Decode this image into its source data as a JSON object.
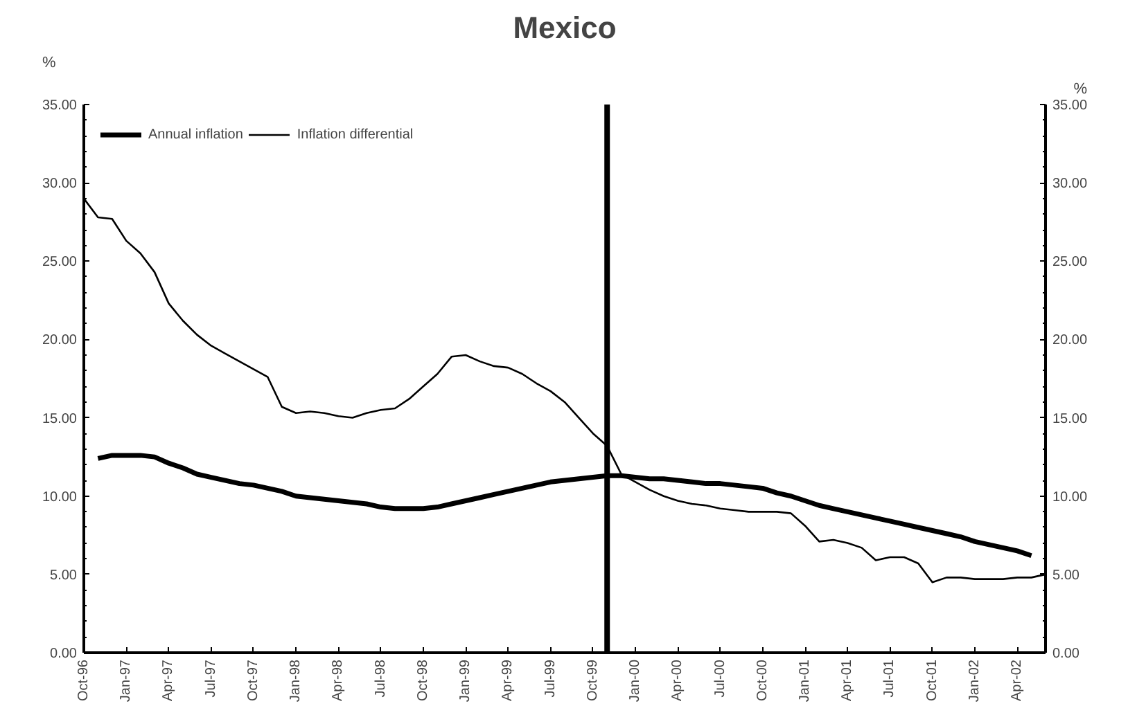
{
  "chart_data": {
    "type": "line",
    "title": "Mexico",
    "ylabel": "%",
    "y2label": "%",
    "x": [
      "1996-10",
      "1996-11",
      "1996-12",
      "1997-01",
      "1997-02",
      "1997-03",
      "1997-04",
      "1997-05",
      "1997-06",
      "1997-07",
      "1997-08",
      "1997-09",
      "1997-10",
      "1997-11",
      "1997-12",
      "1998-01",
      "1998-02",
      "1998-03",
      "1998-04",
      "1998-05",
      "1998-06",
      "1998-07",
      "1998-08",
      "1998-09",
      "1998-10",
      "1998-11",
      "1998-12",
      "1999-01",
      "1999-02",
      "1999-03",
      "1999-04",
      "1999-05",
      "1999-06",
      "1999-07",
      "1999-08",
      "1999-09",
      "1999-10",
      "1999-11",
      "1999-12",
      "2000-01",
      "2000-02",
      "2000-03",
      "2000-04",
      "2000-05",
      "2000-06",
      "2000-07",
      "2000-08",
      "2000-09",
      "2000-10",
      "2000-11",
      "2000-12",
      "2001-01",
      "2001-02",
      "2001-03",
      "2001-04",
      "2001-05",
      "2001-06",
      "2001-07",
      "2001-08",
      "2001-09",
      "2001-10",
      "2001-11",
      "2001-12",
      "2002-01",
      "2002-02",
      "2002-03",
      "2002-04",
      "2002-05",
      "2002-06"
    ],
    "series": [
      {
        "name": "Annual inflation",
        "color": "#000000",
        "values": [
          null,
          12.4,
          12.6,
          12.6,
          12.6,
          12.5,
          12.1,
          11.8,
          11.4,
          11.2,
          11.0,
          10.8,
          10.7,
          10.5,
          10.3,
          10.0,
          9.9,
          9.8,
          9.7,
          9.6,
          9.5,
          9.3,
          9.2,
          9.2,
          9.2,
          9.3,
          9.5,
          9.7,
          9.9,
          10.1,
          10.3,
          10.5,
          10.7,
          10.9,
          11.0,
          11.1,
          11.2,
          11.3,
          11.3,
          11.2,
          11.1,
          11.1,
          11.0,
          10.9,
          10.8,
          10.8,
          10.7,
          10.6,
          10.5,
          10.2,
          10.0,
          9.7,
          9.4,
          9.2,
          9.0,
          8.8,
          8.6,
          8.4,
          8.2,
          8.0,
          7.8,
          7.6,
          7.4,
          7.1,
          6.9,
          6.7,
          6.5,
          6.2,
          null
        ]
      },
      {
        "name": "Inflation differential",
        "color": "#000000",
        "values": [
          29.0,
          27.8,
          27.7,
          26.3,
          25.5,
          24.3,
          22.3,
          21.2,
          20.3,
          19.6,
          19.1,
          18.6,
          18.1,
          17.6,
          15.7,
          15.3,
          15.4,
          15.3,
          15.1,
          15.0,
          15.3,
          15.5,
          15.6,
          16.2,
          17.0,
          17.8,
          18.9,
          19.0,
          18.6,
          18.3,
          18.2,
          17.8,
          17.2,
          16.7,
          16.0,
          15.0,
          14.0,
          13.2,
          11.4,
          10.9,
          10.4,
          10.0,
          9.7,
          9.5,
          9.4,
          9.2,
          9.1,
          9.0,
          9.0,
          9.0,
          8.9,
          8.1,
          7.1,
          7.2,
          7.0,
          6.7,
          5.9,
          6.1,
          6.1,
          5.7,
          4.5,
          4.8,
          4.8,
          4.7,
          4.7,
          4.7,
          4.8,
          4.8,
          5.0
        ]
      }
    ],
    "xlim": [
      "1996-10",
      "2002-06"
    ],
    "xticks": [
      {
        "value": "1996-10",
        "label": "Oct-96"
      },
      {
        "value": "1997-01",
        "label": "Jan-97"
      },
      {
        "value": "1997-04",
        "label": "Apr-97"
      },
      {
        "value": "1997-07",
        "label": "Jul-97"
      },
      {
        "value": "1997-10",
        "label": "Oct-97"
      },
      {
        "value": "1998-01",
        "label": "Jan-98"
      },
      {
        "value": "1998-04",
        "label": "Apr-98"
      },
      {
        "value": "1998-07",
        "label": "Jul-98"
      },
      {
        "value": "1998-10",
        "label": "Oct-98"
      },
      {
        "value": "1999-01",
        "label": "Jan-99"
      },
      {
        "value": "1999-04",
        "label": "Apr-99"
      },
      {
        "value": "1999-07",
        "label": "Jul-99"
      },
      {
        "value": "1999-10",
        "label": "Oct-99"
      },
      {
        "value": "2000-01",
        "label": "Jan-00"
      },
      {
        "value": "2000-04",
        "label": "Apr-00"
      },
      {
        "value": "2000-07",
        "label": "Jul-00"
      },
      {
        "value": "2000-10",
        "label": "Oct-00"
      },
      {
        "value": "2001-01",
        "label": "Jan-01"
      },
      {
        "value": "2001-04",
        "label": "Apr-01"
      },
      {
        "value": "2001-07",
        "label": "Jul-01"
      },
      {
        "value": "2001-10",
        "label": "Oct-01"
      },
      {
        "value": "2002-01",
        "label": "Jan-02"
      },
      {
        "value": "2002-04",
        "label": "Apr-02"
      }
    ],
    "ylim": [
      0,
      35
    ],
    "yticks": [
      {
        "value": 0,
        "label": "0.00"
      },
      {
        "value": 5,
        "label": "5.00"
      },
      {
        "value": 10,
        "label": "10.00"
      },
      {
        "value": 15,
        "label": "15.00"
      },
      {
        "value": 20,
        "label": "20.00"
      },
      {
        "value": 25,
        "label": "25.00"
      },
      {
        "value": 30,
        "label": "30.00"
      },
      {
        "value": 35,
        "label": "35.00"
      }
    ],
    "y2lim": [
      0,
      35
    ],
    "y2ticks": [
      {
        "value": 0,
        "label": "0.00"
      },
      {
        "value": 5,
        "label": "5.00"
      },
      {
        "value": 10,
        "label": "10.00"
      },
      {
        "value": 15,
        "label": "15.00"
      },
      {
        "value": 20,
        "label": "20.00"
      },
      {
        "value": 25,
        "label": "25.00"
      },
      {
        "value": 30,
        "label": "30.00"
      },
      {
        "value": 35,
        "label": "35.00"
      }
    ],
    "ref_lines": [
      {
        "axis": "x",
        "value": "1999-11",
        "color": "#000000"
      }
    ],
    "grid": false,
    "legend": "top",
    "marker": "none",
    "line_style": "solid"
  }
}
